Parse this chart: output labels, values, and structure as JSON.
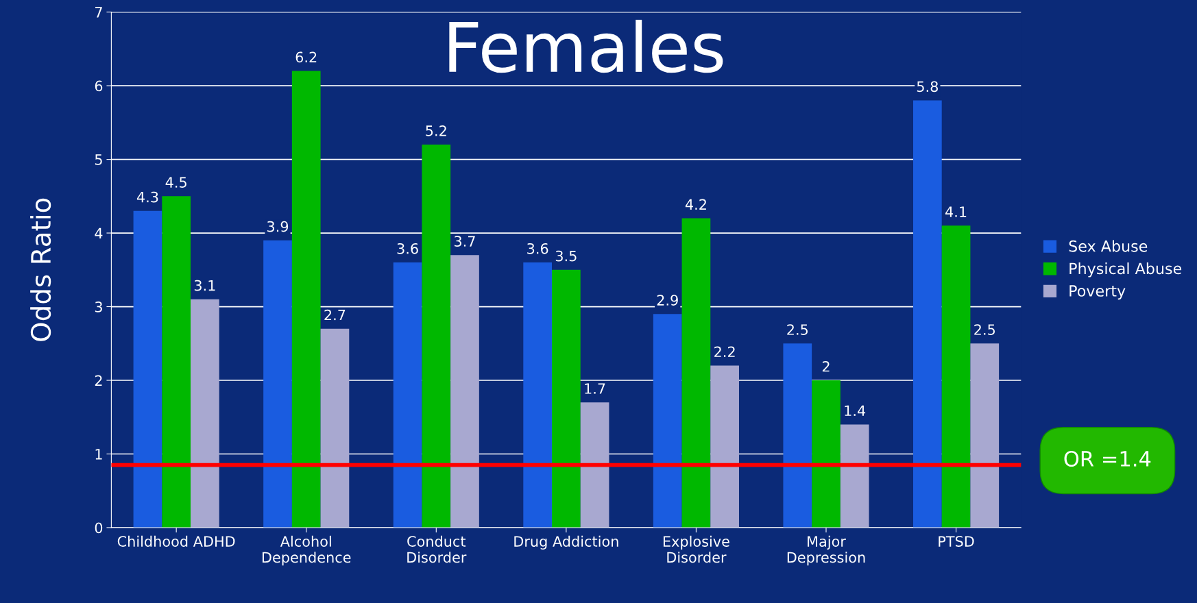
{
  "chart_data": {
    "type": "bar",
    "title": "Females",
    "ylabel": "Odds Ratio",
    "categories": [
      "Childhood ADHD",
      "Alcohol\nDependence",
      "Conduct\nDisorder",
      "Drug Addiction",
      "Explosive\nDisorder",
      "Major\nDepression",
      "PTSD"
    ],
    "series": [
      {
        "name": "Sex Abuse",
        "color": "#1a5ce0",
        "values": [
          4.3,
          3.9,
          3.6,
          3.6,
          2.9,
          2.5,
          5.8
        ]
      },
      {
        "name": "Physical Abuse",
        "color": "#00b800",
        "values": [
          4.5,
          6.2,
          5.2,
          3.5,
          4.2,
          2,
          4.1
        ]
      },
      {
        "name": "Poverty",
        "color": "#a8a8d0",
        "values": [
          3.1,
          2.7,
          3.7,
          1.7,
          2.2,
          1.4,
          2.5
        ]
      }
    ],
    "ylim": [
      0,
      7
    ],
    "yticks": [
      0,
      1,
      2,
      3,
      4,
      5,
      6,
      7
    ],
    "grid": "y",
    "legend": "right",
    "data_labels": true,
    "ref_lines": [
      {
        "axis": "y",
        "value": 0.85,
        "color": "#ff0000"
      }
    ],
    "annotations": [
      "OR =1.4"
    ]
  }
}
